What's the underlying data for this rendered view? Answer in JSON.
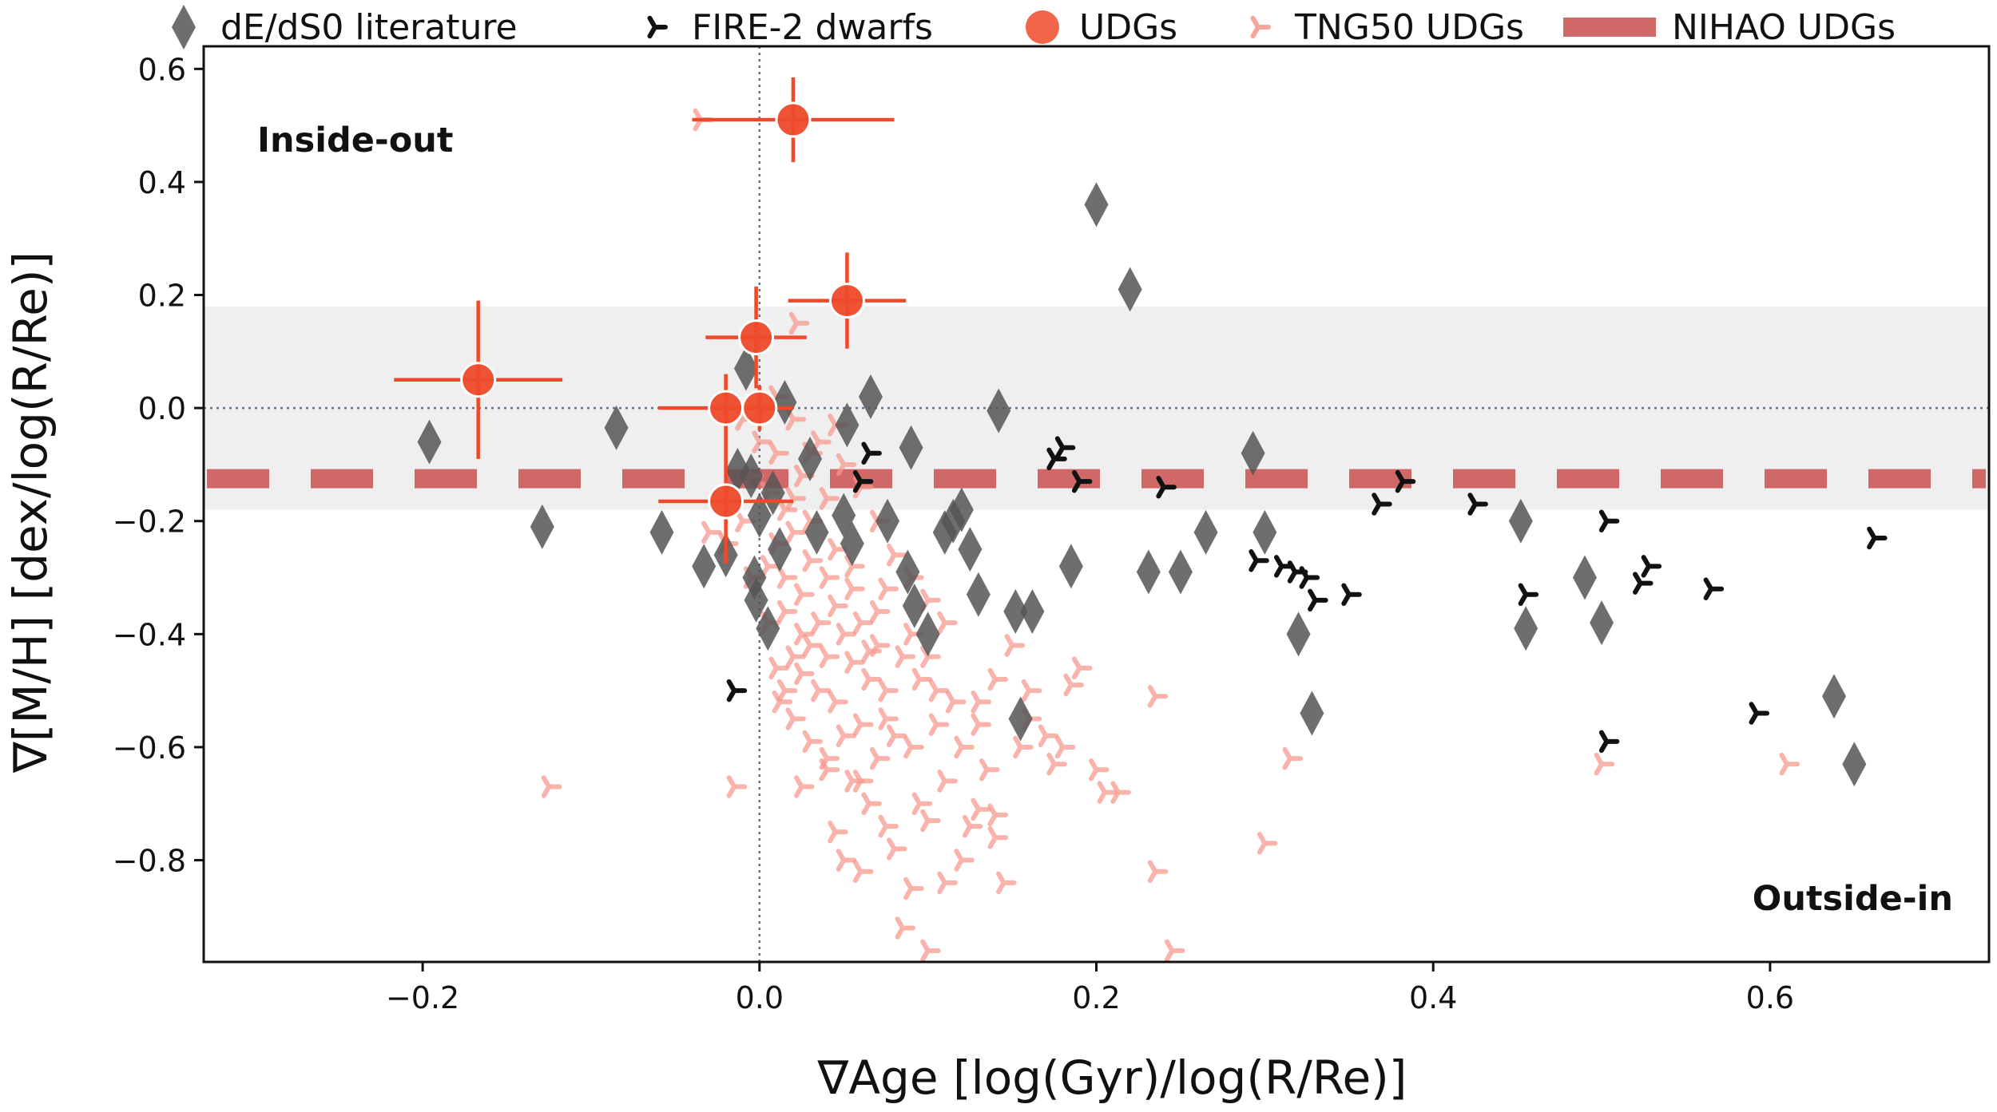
{
  "chart_data": {
    "type": "scatter",
    "xlabel": "∇Age [log(Gyr)/log(R/Re)]",
    "ylabel": "∇[M/H]  [dex/log(R/Re)]",
    "xlim": [
      -0.33,
      0.73
    ],
    "ylim": [
      -0.98,
      0.64
    ],
    "x_ticks": [
      -0.2,
      0.0,
      0.2,
      0.4,
      0.6
    ],
    "x_tick_labels": [
      "−0.2",
      "0.0",
      "0.2",
      "0.4",
      "0.6"
    ],
    "y_ticks": [
      0.6,
      0.4,
      0.2,
      0.0,
      -0.2,
      -0.4,
      -0.6,
      -0.8
    ],
    "y_tick_labels": [
      "0.6",
      "0.4",
      "0.2",
      "0.0",
      "−0.2",
      "−0.4",
      "−0.6",
      "−0.8"
    ],
    "grid": false,
    "legend_position": "top, outside plot",
    "shaded_band": [
      -0.18,
      0.18
    ],
    "reference_lines": {
      "x": 0.0,
      "y": 0.0
    },
    "annotations": [
      {
        "text": "Inside-out",
        "corner": "top-left"
      },
      {
        "text": "Outside-in",
        "corner": "bottom-right"
      }
    ],
    "colors": {
      "dE": "#555555",
      "fire": "#111111",
      "udg": "#ee4a2a",
      "tng": "#f6968a",
      "nihao": "#d06868",
      "band": "#efefef",
      "refline": "#5a7696"
    },
    "series": [
      {
        "name": "dE/dS0 literature",
        "marker": "diamond",
        "points": [
          [
            -0.196,
            -0.06
          ],
          [
            -0.129,
            -0.21
          ],
          [
            -0.085,
            -0.035
          ],
          [
            -0.058,
            -0.22
          ],
          [
            -0.033,
            -0.28
          ],
          [
            -0.02,
            -0.26
          ],
          [
            -0.013,
            -0.11
          ],
          [
            -0.008,
            0.07
          ],
          [
            -0.005,
            -0.12
          ],
          [
            -0.003,
            -0.3
          ],
          [
            -0.002,
            -0.34
          ],
          [
            0.0,
            -0.19
          ],
          [
            0.005,
            -0.39
          ],
          [
            0.008,
            -0.15
          ],
          [
            0.012,
            -0.25
          ],
          [
            0.015,
            0.01
          ],
          [
            0.03,
            -0.09
          ],
          [
            0.034,
            -0.22
          ],
          [
            0.05,
            -0.19
          ],
          [
            0.052,
            -0.03
          ],
          [
            0.055,
            -0.24
          ],
          [
            0.066,
            0.02
          ],
          [
            0.076,
            -0.2
          ],
          [
            0.088,
            -0.29
          ],
          [
            0.09,
            -0.07
          ],
          [
            0.092,
            -0.35
          ],
          [
            0.1,
            -0.4
          ],
          [
            0.11,
            -0.22
          ],
          [
            0.115,
            -0.2
          ],
          [
            0.12,
            -0.18
          ],
          [
            0.125,
            -0.25
          ],
          [
            0.13,
            -0.33
          ],
          [
            0.142,
            -0.005
          ],
          [
            0.152,
            -0.36
          ],
          [
            0.155,
            -0.55
          ],
          [
            0.162,
            -0.36
          ],
          [
            0.185,
            -0.28
          ],
          [
            0.2,
            0.36
          ],
          [
            0.22,
            0.21
          ],
          [
            0.231,
            -0.29
          ],
          [
            0.25,
            -0.29
          ],
          [
            0.265,
            -0.22
          ],
          [
            0.293,
            -0.08
          ],
          [
            0.3,
            -0.22
          ],
          [
            0.32,
            -0.4
          ],
          [
            0.328,
            -0.54
          ],
          [
            0.452,
            -0.2
          ],
          [
            0.455,
            -0.39
          ],
          [
            0.49,
            -0.3
          ],
          [
            0.5,
            -0.38
          ],
          [
            0.638,
            -0.51
          ],
          [
            0.65,
            -0.63
          ]
        ]
      },
      {
        "name": "FIRE-2 dwarfs",
        "marker": "tri",
        "points": [
          [
            -0.015,
            -0.5
          ],
          [
            0.06,
            -0.13
          ],
          [
            0.065,
            -0.08
          ],
          [
            0.175,
            -0.09
          ],
          [
            0.18,
            -0.07
          ],
          [
            0.19,
            -0.13
          ],
          [
            0.24,
            -0.14
          ],
          [
            0.295,
            -0.27
          ],
          [
            0.31,
            -0.28
          ],
          [
            0.318,
            -0.29
          ],
          [
            0.325,
            -0.3
          ],
          [
            0.33,
            -0.34
          ],
          [
            0.35,
            -0.33
          ],
          [
            0.368,
            -0.17
          ],
          [
            0.382,
            -0.13
          ],
          [
            0.425,
            -0.17
          ],
          [
            0.455,
            -0.33
          ],
          [
            0.503,
            -0.2
          ],
          [
            0.503,
            -0.59
          ],
          [
            0.523,
            -0.31
          ],
          [
            0.528,
            -0.28
          ],
          [
            0.565,
            -0.32
          ],
          [
            0.592,
            -0.54
          ],
          [
            0.662,
            -0.23
          ]
        ]
      },
      {
        "name": "UDGs",
        "marker": "circle",
        "points": [
          {
            "x": 0.02,
            "y": 0.51,
            "xerr": 0.06,
            "yerr": 0.075
          },
          {
            "x": 0.052,
            "y": 0.19,
            "xerr": 0.035,
            "yerr": 0.085
          },
          {
            "x": -0.002,
            "y": 0.125,
            "xerr": 0.03,
            "yerr": 0.09
          },
          {
            "x": -0.167,
            "y": 0.05,
            "xerr": 0.05,
            "yerr": 0.14
          },
          {
            "x": -0.02,
            "y": 0.0,
            "xerr": 0.04,
            "yerr": 0.06
          },
          {
            "x": 0.0,
            "y": 0.0,
            "xerr": 0.02,
            "yerr": 0.04
          },
          {
            "x": -0.02,
            "y": -0.165,
            "xerr": 0.04,
            "yerr": 0.11
          }
        ]
      },
      {
        "name": "TNG50 UDGs",
        "marker": "tri",
        "points": [
          [
            -0.035,
            0.51
          ],
          [
            -0.125,
            -0.67
          ],
          [
            0.022,
            0.15
          ],
          [
            -0.015,
            -0.67
          ],
          [
            0.3,
            -0.77
          ],
          [
            0.315,
            -0.62
          ],
          [
            0.5,
            -0.63
          ],
          [
            0.61,
            -0.63
          ],
          [
            0.235,
            -0.51
          ],
          [
            0.235,
            -0.82
          ],
          [
            0.245,
            -0.96
          ],
          [
            0.1,
            -0.96
          ],
          [
            0.19,
            -0.46
          ],
          [
            0.185,
            -0.49
          ],
          [
            0.15,
            -0.42
          ],
          [
            0.13,
            -0.71
          ],
          [
            0.135,
            -0.64
          ],
          [
            0.14,
            -0.72
          ],
          [
            0.16,
            -0.55
          ],
          [
            0.175,
            -0.63
          ],
          [
            0.18,
            -0.6
          ],
          [
            0.2,
            -0.64
          ],
          [
            0.205,
            -0.68
          ],
          [
            0.213,
            -0.68
          ],
          [
            0.12,
            -0.8
          ],
          [
            0.11,
            -0.84
          ],
          [
            0.09,
            -0.85
          ],
          [
            0.085,
            -0.92
          ],
          [
            0.06,
            -0.82
          ],
          [
            0.045,
            -0.75
          ],
          [
            0.04,
            -0.64
          ],
          [
            0.03,
            -0.59
          ],
          [
            0.025,
            -0.67
          ],
          [
            0.07,
            -0.62
          ],
          [
            0.075,
            -0.55
          ],
          [
            0.09,
            -0.6
          ],
          [
            0.105,
            -0.56
          ],
          [
            0.1,
            -0.73
          ],
          [
            0.125,
            -0.74
          ],
          [
            0.14,
            -0.76
          ],
          [
            0.145,
            -0.84
          ],
          [
            0.08,
            -0.78
          ],
          [
            0.065,
            -0.7
          ],
          [
            0.055,
            -0.66
          ],
          [
            0.05,
            -0.58
          ],
          [
            0.02,
            -0.55
          ],
          [
            0.015,
            -0.5
          ],
          [
            0.01,
            -0.46
          ],
          [
            0.02,
            -0.44
          ],
          [
            0.03,
            -0.42
          ],
          [
            0.04,
            -0.44
          ],
          [
            0.05,
            -0.4
          ],
          [
            0.06,
            -0.38
          ],
          [
            0.07,
            -0.42
          ],
          [
            0.035,
            -0.38
          ],
          [
            0.045,
            -0.35
          ],
          [
            0.055,
            -0.32
          ],
          [
            0.025,
            -0.33
          ],
          [
            0.015,
            -0.3
          ],
          [
            0.005,
            -0.28
          ],
          [
            0.01,
            -0.24
          ],
          [
            0.02,
            -0.22
          ],
          [
            0.03,
            -0.2
          ],
          [
            0.04,
            -0.16
          ],
          [
            0.015,
            -0.18
          ],
          [
            0.005,
            -0.15
          ],
          [
            -0.005,
            -0.12
          ],
          [
            -0.01,
            -0.2
          ],
          [
            -0.02,
            -0.24
          ],
          [
            -0.03,
            -0.22
          ],
          [
            0.0,
            -0.06
          ],
          [
            0.01,
            -0.08
          ],
          [
            0.02,
            -0.02
          ],
          [
            0.025,
            -0.12
          ],
          [
            0.035,
            -0.06
          ],
          [
            0.05,
            -0.1
          ],
          [
            0.06,
            -0.14
          ],
          [
            0.07,
            -0.2
          ],
          [
            0.08,
            -0.26
          ],
          [
            0.09,
            -0.3
          ],
          [
            0.1,
            -0.34
          ],
          [
            0.11,
            -0.38
          ],
          [
            0.085,
            -0.44
          ],
          [
            0.095,
            -0.48
          ],
          [
            0.105,
            -0.5
          ],
          [
            0.115,
            -0.52
          ],
          [
            0.075,
            -0.5
          ],
          [
            0.065,
            -0.48
          ],
          [
            0.045,
            -0.52
          ],
          [
            0.035,
            -0.5
          ],
          [
            0.025,
            -0.47
          ],
          [
            0.06,
            -0.56
          ],
          [
            0.08,
            -0.58
          ],
          [
            0.12,
            -0.6
          ],
          [
            0.13,
            -0.56
          ],
          [
            0.005,
            -0.38
          ],
          [
            -0.005,
            -0.3
          ],
          [
            0.015,
            -0.36
          ],
          [
            0.03,
            -0.27
          ],
          [
            0.045,
            -0.25
          ],
          [
            0.055,
            -0.28
          ],
          [
            0.075,
            -0.32
          ],
          [
            0.07,
            -0.36
          ],
          [
            0.04,
            -0.3
          ],
          [
            0.025,
            -0.4
          ],
          [
            0.09,
            -0.4
          ],
          [
            0.1,
            -0.44
          ],
          [
            0.055,
            -0.45
          ],
          [
            0.065,
            -0.43
          ],
          [
            0.012,
            -0.52
          ],
          [
            0.04,
            -0.62
          ],
          [
            0.06,
            -0.66
          ],
          [
            0.17,
            -0.58
          ],
          [
            0.155,
            -0.6
          ],
          [
            0.11,
            -0.66
          ],
          [
            0.095,
            -0.7
          ],
          [
            0.075,
            -0.74
          ],
          [
            0.05,
            -0.8
          ],
          [
            0.13,
            -0.52
          ],
          [
            0.14,
            -0.48
          ],
          [
            0.16,
            -0.5
          ],
          [
            0.03,
            -0.08
          ],
          [
            0.01,
            0.02
          ],
          [
            -0.01,
            -0.02
          ],
          [
            0.045,
            -0.03
          ],
          [
            0.02,
            -0.16
          ]
        ]
      },
      {
        "name": "NIHAO UDGs",
        "marker": "dashed-line",
        "y": -0.125
      }
    ]
  }
}
